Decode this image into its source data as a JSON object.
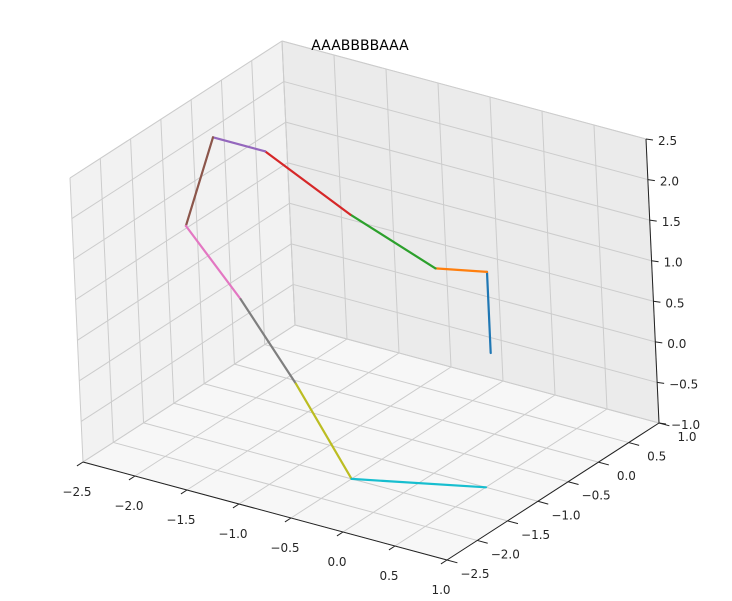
{
  "chart_data": {
    "type": "line3d",
    "title": "AAABBBBAAA",
    "xlabel": "",
    "ylabel": "",
    "zlabel": "",
    "grid": true,
    "xlim": [
      -2.5,
      1.0
    ],
    "ylim": [
      -2.5,
      1.0
    ],
    "zlim": [
      -1.0,
      2.5
    ],
    "x_ticks": [
      "−2.5",
      "−2.0",
      "−1.5",
      "−1.0",
      "−0.5",
      "0.0",
      "0.5",
      "1.0"
    ],
    "y_ticks": [
      "−2.5",
      "−2.0",
      "−1.5",
      "−1.0",
      "−0.5",
      "0.0",
      "0.5",
      "1.0"
    ],
    "z_ticks": [
      "−1.0",
      "−0.5",
      "0.0",
      "0.5",
      "1.0",
      "1.5",
      "2.0",
      "2.5"
    ],
    "points": [
      {
        "x": 0.0,
        "y": 0.0,
        "z": 0.0
      },
      {
        "x": 0.0,
        "y": 0.0,
        "z": 1.0
      },
      {
        "x": -0.5,
        "y": 0.0,
        "z": 0.87
      },
      {
        "x": -1.0,
        "y": -0.5,
        "z": 1.6
      },
      {
        "x": -1.5,
        "y": -1.0,
        "z": 2.45
      },
      {
        "x": -2.0,
        "y": -1.0,
        "z": 2.45
      },
      {
        "x": -2.0,
        "y": -1.5,
        "z": 1.6
      },
      {
        "x": -1.5,
        "y": -1.5,
        "z": 0.87
      },
      {
        "x": -1.0,
        "y": -1.5,
        "z": 0.0
      },
      {
        "x": -0.5,
        "y": -1.5,
        "z": -1.0
      },
      {
        "x": 0.5,
        "y": -1.0,
        "z": -1.0
      }
    ],
    "segment_colors": [
      "#1f77b4",
      "#ff7f0e",
      "#2ca02c",
      "#d62728",
      "#9467bd",
      "#8c564b",
      "#e377c2",
      "#7f7f7f",
      "#bcbd22",
      "#17becf"
    ]
  }
}
